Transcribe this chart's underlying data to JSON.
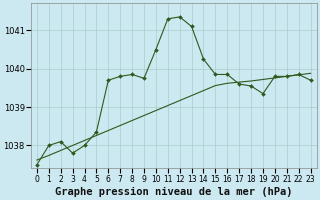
{
  "title": "Graphe pression niveau de la mer (hPa)",
  "bg_color": "#cce8f0",
  "grid_color": "#aacccc",
  "line_color": "#2d5a1e",
  "x_labels": [
    "0",
    "1",
    "2",
    "3",
    "4",
    "5",
    "6",
    "7",
    "8",
    "9",
    "10",
    "11",
    "12",
    "13",
    "14",
    "15",
    "16",
    "17",
    "18",
    "19",
    "20",
    "21",
    "22",
    "23"
  ],
  "main_line": [
    1037.5,
    1038.0,
    1038.1,
    1037.8,
    1038.0,
    1038.35,
    1039.7,
    1039.8,
    1039.85,
    1039.75,
    1040.5,
    1041.3,
    1041.35,
    1041.1,
    1040.25,
    1039.85,
    1039.85,
    1039.6,
    1039.55,
    1039.35,
    1039.8,
    1039.8,
    1039.85,
    1039.7
  ],
  "trend_line": [
    1037.62,
    1037.74,
    1037.87,
    1038.0,
    1038.13,
    1038.26,
    1038.39,
    1038.52,
    1038.65,
    1038.78,
    1038.91,
    1039.04,
    1039.17,
    1039.3,
    1039.43,
    1039.56,
    1039.62,
    1039.65,
    1039.68,
    1039.72,
    1039.76,
    1039.8,
    1039.84,
    1039.88
  ],
  "ylim_min": 1037.4,
  "ylim_max": 1041.7,
  "yticks": [
    1038,
    1039,
    1040,
    1041
  ],
  "title_fontsize": 7.5,
  "tick_fontsize": 6.0,
  "fig_width": 3.2,
  "fig_height": 2.0,
  "dpi": 100
}
